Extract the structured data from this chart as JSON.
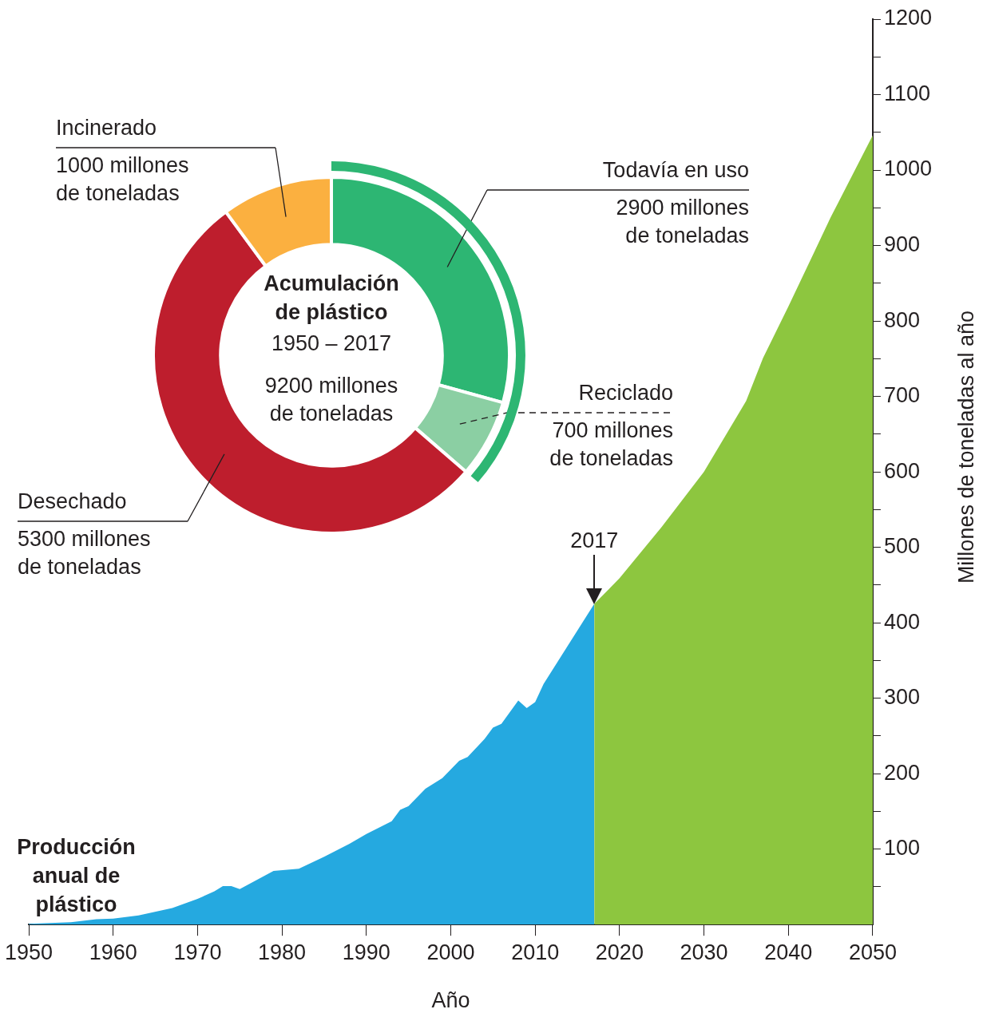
{
  "chart_data": [
    {
      "type": "area",
      "xlabel": "Año",
      "ylabel": "Millones de toneladas al año",
      "xlim": [
        1950,
        2050
      ],
      "ylim": [
        0,
        1200
      ],
      "xticks": [
        1950,
        1960,
        1970,
        1980,
        1990,
        2000,
        2010,
        2020,
        2030,
        2040,
        2050
      ],
      "yticks": [
        {
          "value": 50,
          "label": null
        },
        100,
        {
          "value": 150,
          "label": null
        },
        200,
        {
          "value": 250,
          "label": null
        },
        300,
        {
          "value": 350,
          "label": null
        },
        400,
        {
          "value": 450,
          "label": null
        },
        500,
        {
          "value": 550,
          "label": null
        },
        600,
        {
          "value": 650,
          "label": null
        },
        700,
        {
          "value": 750,
          "label": null
        },
        800,
        {
          "value": 850,
          "label": null
        },
        900,
        {
          "value": 950,
          "label": null
        },
        1000,
        {
          "value": 1050,
          "label": null
        },
        1100,
        {
          "value": 1150,
          "label": null
        },
        1200
      ],
      "series": [
        {
          "color": "#25a9e0",
          "x": [
            1950,
            1955,
            1958,
            1960,
            1963,
            1967,
            1970,
            1972,
            1973,
            1974,
            1975,
            1979,
            1982,
            1985,
            1988,
            1990,
            1993,
            1994,
            1995,
            1997,
            1999,
            2001,
            2002,
            2004,
            2005,
            2006,
            2008,
            2009,
            2010,
            2011,
            2017
          ],
          "values": [
            1,
            3,
            7,
            8,
            12,
            22,
            34,
            44,
            51,
            51,
            47,
            71,
            74,
            90,
            107,
            120,
            137,
            152,
            157,
            180,
            194,
            217,
            222,
            246,
            261,
            266,
            297,
            287,
            295,
            319,
            425
          ]
        },
        {
          "color": "#8dc63f",
          "x": [
            2017,
            2020,
            2025,
            2030,
            2035,
            2037,
            2040,
            2045,
            2050
          ],
          "values": [
            425,
            459,
            527,
            600,
            694,
            751,
            819,
            937,
            1046
          ]
        }
      ],
      "annotations": [
        "Producción anual de plástico",
        {
          "text": "2017",
          "x": 2017,
          "y": 425
        }
      ]
    },
    {
      "type": "donut",
      "title": "Acumulación de plástico",
      "subtitle": "1950 – 2017",
      "categories": [
        "Todavía en uso",
        "Reciclado",
        "Desechado",
        "Incinerado"
      ],
      "values": [
        2900,
        700,
        5300,
        1000
      ],
      "colors": [
        "#2db673",
        "#8bcfa3",
        "#be1e2d",
        "#fbb040"
      ],
      "value_labels": [
        "2900 millones de toneladas",
        "700 millones de toneladas",
        "5300 millones de toneladas",
        "1000 millones de toneladas"
      ],
      "annotations": [
        "9200 millones de toneladas"
      ]
    }
  ]
}
